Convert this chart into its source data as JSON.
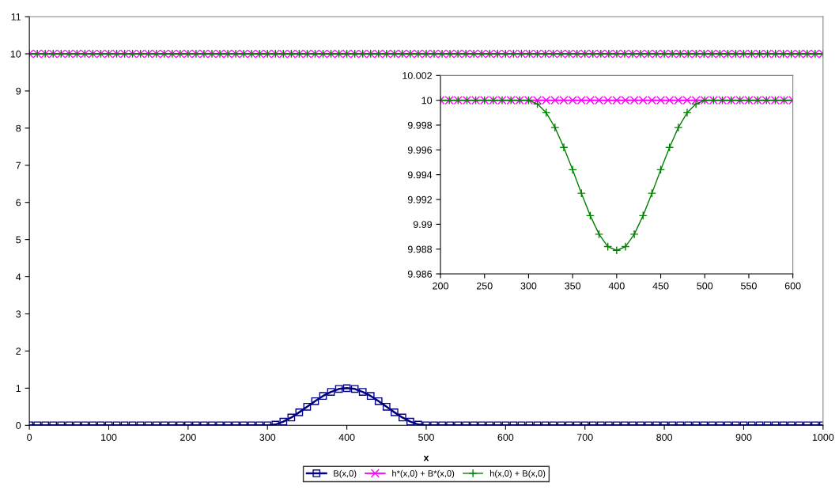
{
  "chart_data": [
    {
      "type": "line",
      "xlabel": "x",
      "xlim": [
        0,
        1000
      ],
      "xticks": [
        0,
        100,
        200,
        300,
        400,
        500,
        600,
        700,
        800,
        900,
        1000
      ],
      "ylim": [
        0,
        11
      ],
      "yticks": [
        0,
        1,
        2,
        3,
        4,
        5,
        6,
        7,
        8,
        9,
        10,
        11
      ],
      "grid": false,
      "legend": "bottom",
      "x": [
        0,
        10,
        20,
        30,
        40,
        50,
        60,
        70,
        80,
        90,
        100,
        110,
        120,
        130,
        140,
        150,
        160,
        170,
        180,
        190,
        200,
        210,
        220,
        230,
        240,
        250,
        260,
        270,
        280,
        290,
        300,
        310,
        320,
        330,
        340,
        350,
        360,
        370,
        380,
        390,
        400,
        410,
        420,
        430,
        440,
        450,
        460,
        470,
        480,
        490,
        500,
        510,
        520,
        530,
        540,
        550,
        560,
        570,
        580,
        590,
        600,
        610,
        620,
        630,
        640,
        650,
        660,
        670,
        680,
        690,
        700,
        710,
        720,
        730,
        740,
        750,
        760,
        770,
        780,
        790,
        800,
        810,
        820,
        830,
        840,
        850,
        860,
        870,
        880,
        890,
        900,
        910,
        920,
        930,
        940,
        950,
        960,
        970,
        980,
        990,
        1000
      ],
      "series": [
        {
          "name": "B(x,0)",
          "color": "#000080",
          "marker": "square",
          "values": [
            0,
            0,
            0,
            0,
            0,
            0,
            0,
            0,
            0,
            0,
            0,
            0,
            0,
            0,
            0,
            0,
            0,
            0,
            0,
            0,
            0,
            0,
            0,
            0,
            0,
            0,
            0,
            0,
            0,
            0,
            0,
            0.02,
            0.1,
            0.21,
            0.35,
            0.5,
            0.65,
            0.79,
            0.9,
            0.98,
            1,
            0.98,
            0.9,
            0.79,
            0.65,
            0.5,
            0.35,
            0.21,
            0.1,
            0.02,
            0,
            0,
            0,
            0,
            0,
            0,
            0,
            0,
            0,
            0,
            0,
            0,
            0,
            0,
            0,
            0,
            0,
            0,
            0,
            0,
            0,
            0,
            0,
            0,
            0,
            0,
            0,
            0,
            0,
            0,
            0,
            0,
            0,
            0,
            0,
            0,
            0,
            0,
            0,
            0,
            0,
            0,
            0,
            0,
            0,
            0,
            0,
            0,
            0,
            0,
            0
          ]
        },
        {
          "name": "h*(x,0) + B*(x,0)",
          "color": "#ff00ff",
          "marker": "x",
          "values": [
            10,
            10,
            10,
            10,
            10,
            10,
            10,
            10,
            10,
            10,
            10,
            10,
            10,
            10,
            10,
            10,
            10,
            10,
            10,
            10,
            10,
            10,
            10,
            10,
            10,
            10,
            10,
            10,
            10,
            10,
            10,
            10,
            10,
            10,
            10,
            10,
            10,
            10,
            10,
            10,
            10,
            10,
            10,
            10,
            10,
            10,
            10,
            10,
            10,
            10,
            10,
            10,
            10,
            10,
            10,
            10,
            10,
            10,
            10,
            10,
            10,
            10,
            10,
            10,
            10,
            10,
            10,
            10,
            10,
            10,
            10,
            10,
            10,
            10,
            10,
            10,
            10,
            10,
            10,
            10,
            10,
            10,
            10,
            10,
            10,
            10,
            10,
            10,
            10,
            10,
            10,
            10,
            10,
            10,
            10,
            10,
            10,
            10,
            10,
            10,
            10
          ]
        },
        {
          "name": "h(x,0) + B(x,0)",
          "color": "#008000",
          "marker": "plus",
          "values": [
            10,
            10,
            10,
            10,
            10,
            10,
            10,
            10,
            10,
            10,
            10,
            10,
            10,
            10,
            10,
            10,
            10,
            10,
            10,
            10,
            10,
            10,
            10,
            10,
            10,
            10,
            10,
            10,
            10,
            10,
            10,
            10,
            10,
            10,
            10,
            10,
            10,
            10,
            10,
            10,
            10,
            10,
            10,
            10,
            10,
            10,
            10,
            10,
            10,
            10,
            10,
            10,
            10,
            10,
            10,
            10,
            10,
            10,
            10,
            10,
            10,
            10,
            10,
            10,
            10,
            10,
            10,
            10,
            10,
            10,
            10,
            10,
            10,
            10,
            10,
            10,
            10,
            10,
            10,
            10,
            10,
            10,
            10,
            10,
            10,
            10,
            10,
            10,
            10,
            10,
            10,
            10,
            10,
            10,
            10,
            10,
            10,
            10,
            10,
            10,
            10
          ]
        }
      ]
    },
    {
      "type": "line",
      "xlim": [
        200,
        600
      ],
      "xticks": [
        200,
        250,
        300,
        350,
        400,
        450,
        500,
        550,
        600
      ],
      "ylim": [
        9.986,
        10.002
      ],
      "yticks": [
        9.986,
        9.988,
        9.99,
        9.992,
        9.994,
        9.996,
        9.998,
        10,
        10.002
      ],
      "grid": false,
      "x": [
        200,
        210,
        220,
        230,
        240,
        250,
        260,
        270,
        280,
        290,
        300,
        310,
        320,
        330,
        340,
        350,
        360,
        370,
        380,
        390,
        400,
        410,
        420,
        430,
        440,
        450,
        460,
        470,
        480,
        490,
        500,
        510,
        520,
        530,
        540,
        550,
        560,
        570,
        580,
        590,
        600
      ],
      "series": [
        {
          "color": "#ff00ff",
          "marker": "x",
          "values": [
            10,
            10,
            10,
            10,
            10,
            10,
            10,
            10,
            10,
            10,
            10,
            10,
            10,
            10,
            10,
            10,
            10,
            10,
            10,
            10,
            10,
            10,
            10,
            10,
            10,
            10,
            10,
            10,
            10,
            10,
            10,
            10,
            10,
            10,
            10,
            10,
            10,
            10,
            10,
            10,
            10
          ]
        },
        {
          "color": "#008000",
          "marker": "plus",
          "values": [
            10,
            10,
            10,
            10,
            10,
            10,
            10,
            10,
            10,
            10,
            10,
            9.9997,
            9.999,
            9.9978,
            9.9962,
            9.9944,
            9.9925,
            9.9907,
            9.9892,
            9.9882,
            9.9879,
            9.9882,
            9.9892,
            9.9907,
            9.9925,
            9.9944,
            9.9962,
            9.9978,
            9.999,
            9.9997,
            10,
            10,
            10,
            10,
            10,
            10,
            10,
            10,
            10,
            10,
            10
          ]
        }
      ]
    }
  ]
}
